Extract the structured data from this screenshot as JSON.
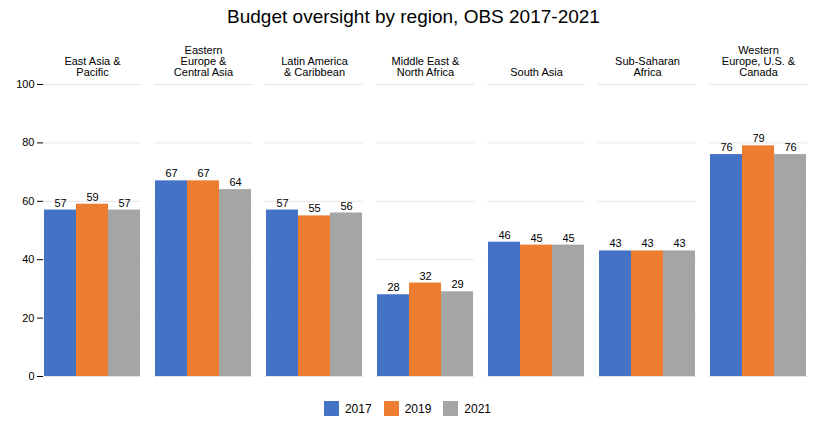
{
  "chart_data": {
    "type": "bar",
    "title": "Budget oversight by region, OBS 2017-2021",
    "categories": [
      "East Asia &\nPacific",
      "Eastern\nEurope &\nCentral Asia",
      "Latin America\n& Caribbean",
      "Middle East &\nNorth Africa",
      "South Asia",
      "Sub-Saharan\nAfrica",
      "Western\nEurope, U.S. &\nCanada"
    ],
    "series": [
      {
        "name": "2017",
        "color": "#4472C4",
        "values": [
          57,
          67,
          57,
          28,
          46,
          43,
          76
        ]
      },
      {
        "name": "2019",
        "color": "#ED7D31",
        "values": [
          59,
          67,
          55,
          32,
          45,
          43,
          79
        ]
      },
      {
        "name": "2021",
        "color": "#A5A5A5",
        "values": [
          57,
          64,
          56,
          29,
          45,
          43,
          76
        ]
      }
    ],
    "ylim": [
      0,
      100
    ],
    "yticks": [
      0,
      20,
      40,
      60,
      80,
      100
    ],
    "grid": true,
    "legend": "bottom",
    "data_labels": true
  }
}
